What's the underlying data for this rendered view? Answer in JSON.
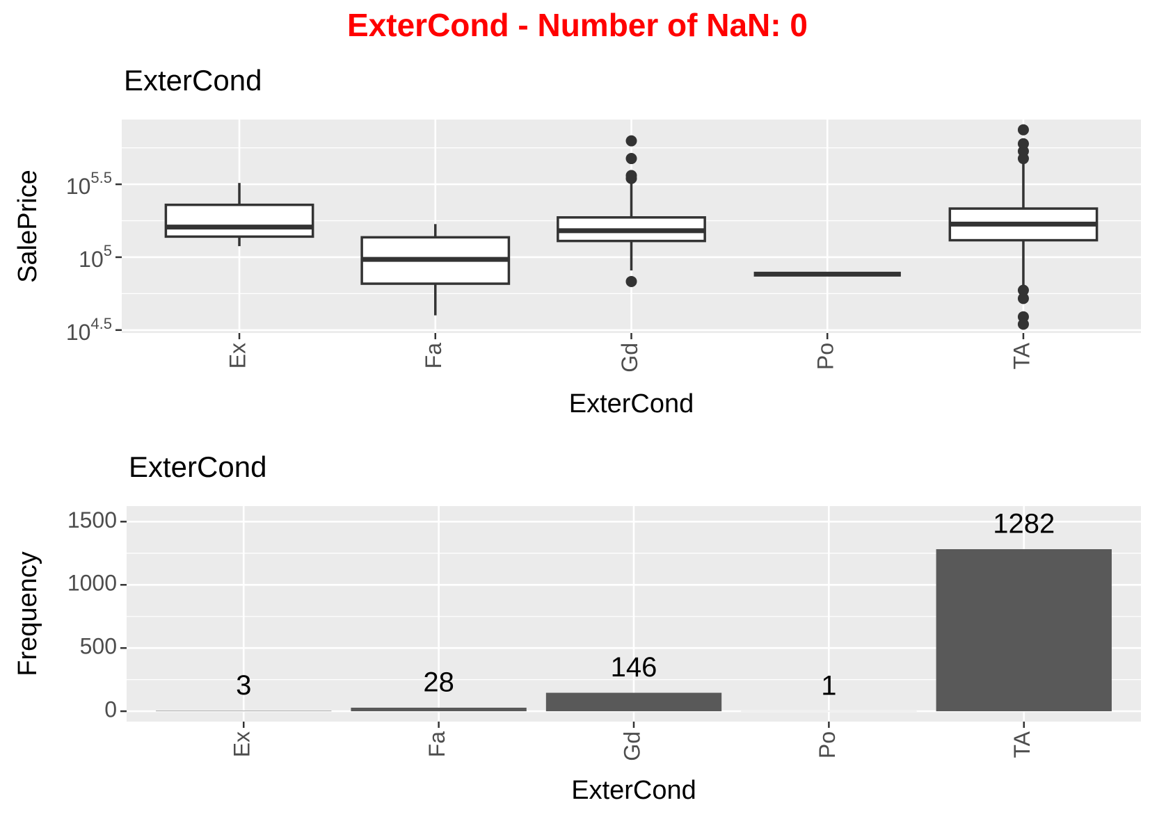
{
  "title": "ExterCond - Number of NaN: 0",
  "chart_data": [
    {
      "type": "box",
      "title": "ExterCond",
      "x_label": "ExterCond",
      "y_label": "SalePrice",
      "categories": [
        "Ex",
        "Fa",
        "Gd",
        "Po",
        "TA"
      ],
      "boxes": [
        {
          "whisker_low": 119000,
          "q1": 138400,
          "median": 161000,
          "q3": 228600,
          "whisker_high": 323000,
          "outliers": []
        },
        {
          "whisker_low": 39900,
          "q1": 65800,
          "median": 96600,
          "q3": 136900,
          "whisker_high": 168700,
          "outliers": []
        },
        {
          "whisker_low": 81100,
          "q1": 129200,
          "median": 152000,
          "q3": 187400,
          "whisker_high": 355900,
          "outliers": [
            68100,
            346700,
            363000,
            475000,
            628000
          ]
        },
        {
          "whisker_low": 76500,
          "q1": 76500,
          "median": 76500,
          "q3": 76500,
          "whisker_high": 76500,
          "outliers": []
        },
        {
          "whisker_low": 60700,
          "q1": 130700,
          "median": 168700,
          "q3": 215500,
          "whisker_high": 437600,
          "outliers": [
            59300,
            52100,
            39000,
            34700,
            475000,
            533000,
            600000,
            748000
          ]
        }
      ],
      "log_scale": true,
      "ylim": [
        30200,
        879000
      ],
      "yticks": [
        {
          "value": 31622.78,
          "label": "10",
          "superscript": "4.5"
        },
        {
          "value": 100000,
          "label": "10",
          "superscript": "5"
        },
        {
          "value": 316227.77,
          "label": "10",
          "superscript": "5.5"
        }
      ],
      "y_minor_grid": [
        56234.13,
        177827.94,
        562341.33
      ],
      "grid": true,
      "color": "#ffffff",
      "line_color": "#333333"
    },
    {
      "type": "bar",
      "title": "ExterCond",
      "x_label": "ExterCond",
      "y_label": "Frequency",
      "categories": [
        "Ex",
        "Fa",
        "Gd",
        "Po",
        "TA"
      ],
      "values": [
        3,
        28,
        146,
        1,
        1282
      ],
      "ylim": [
        -82,
        1623
      ],
      "yticks": [
        0,
        500,
        1000,
        1500
      ],
      "y_minor_grid": [
        250,
        750,
        1250
      ],
      "grid": true,
      "color": "#595959"
    }
  ]
}
